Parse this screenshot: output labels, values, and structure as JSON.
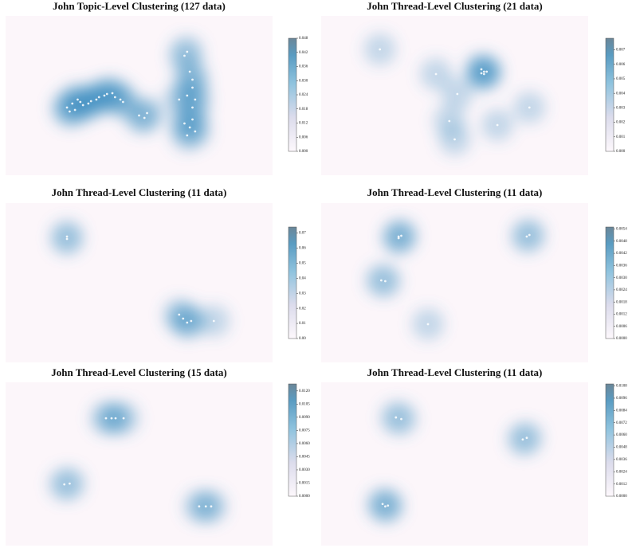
{
  "chart_data": [
    {
      "type": "kde",
      "title": "John Topic-Level Clustering (127 data)",
      "x": [
        23,
        25,
        26,
        28,
        29,
        31,
        32,
        34,
        35,
        37,
        38,
        40,
        41,
        43,
        44,
        24,
        27,
        50,
        52,
        53,
        67,
        68,
        69,
        70,
        70,
        68,
        65,
        71,
        70,
        67,
        69,
        71,
        68,
        70
      ],
      "y": [
        42.5,
        45,
        41,
        46,
        44,
        45,
        46.5,
        47.5,
        49,
        50,
        51,
        51.5,
        49,
        47.5,
        46,
        40,
        47.5,
        37.5,
        36,
        39,
        75,
        77.5,
        65,
        60,
        55,
        50,
        47.5,
        47.5,
        42.5,
        32.5,
        30,
        27.5,
        25,
        35
      ],
      "xlim": [
        0,
        100
      ],
      "ylim": [
        0,
        100
      ],
      "zlim": [
        0,
        0.048
      ],
      "zticks": [
        {
          "value": 0,
          "label": "0.000"
        },
        {
          "value": 0.006,
          "label": "0.006"
        },
        {
          "value": 0.012,
          "label": "0.012"
        },
        {
          "value": 0.018,
          "label": "0.018"
        },
        {
          "value": 0.024,
          "label": "0.024"
        },
        {
          "value": 0.03,
          "label": "0.030"
        },
        {
          "value": 0.036,
          "label": "0.036"
        },
        {
          "value": 0.042,
          "label": "0.042"
        },
        {
          "value": 0.048,
          "label": "0.048"
        }
      ]
    },
    {
      "type": "kde",
      "title": "John Thread-Level Clustering (21 data)",
      "x": [
        22,
        43,
        60,
        62,
        61,
        61,
        60,
        51,
        78,
        48,
        50,
        66
      ],
      "y": [
        79,
        63.5,
        66.5,
        65,
        63.5,
        65,
        64,
        51,
        42.5,
        34,
        22.5,
        31.5
      ],
      "xlim": [
        0,
        100
      ],
      "ylim": [
        0,
        100
      ],
      "zlim": [
        0,
        0.0078
      ],
      "zticks": [
        {
          "value": 0,
          "label": "0.000"
        },
        {
          "value": 0.001,
          "label": "0.001"
        },
        {
          "value": 0.002,
          "label": "0.002"
        },
        {
          "value": 0.003,
          "label": "0.003"
        },
        {
          "value": 0.004,
          "label": "0.004"
        },
        {
          "value": 0.005,
          "label": "0.005"
        },
        {
          "value": 0.006,
          "label": "0.006"
        },
        {
          "value": 0.007,
          "label": "0.007"
        }
      ]
    },
    {
      "type": "kde",
      "title": "John Thread-Level Clustering (11 data)",
      "x": [
        23,
        23,
        65,
        66.5,
        68,
        69.5,
        78
      ],
      "y": [
        79,
        77.5,
        30,
        27.5,
        25,
        26,
        26
      ],
      "xlim": [
        0,
        100
      ],
      "ylim": [
        0,
        100
      ],
      "zlim": [
        0,
        0.074
      ],
      "zticks": [
        {
          "value": 0,
          "label": "0.00"
        },
        {
          "value": 0.01,
          "label": "0.01"
        },
        {
          "value": 0.02,
          "label": "0.02"
        },
        {
          "value": 0.03,
          "label": "0.03"
        },
        {
          "value": 0.04,
          "label": "0.04"
        },
        {
          "value": 0.05,
          "label": "0.05"
        },
        {
          "value": 0.06,
          "label": "0.06"
        },
        {
          "value": 0.07,
          "label": "0.07"
        }
      ]
    },
    {
      "type": "kde",
      "title": "John Thread-Level Clustering (11 data)",
      "x": [
        29,
        30,
        29,
        22.5,
        24,
        40,
        77,
        78
      ],
      "y": [
        79,
        79.5,
        78,
        51.5,
        51,
        24,
        79,
        80
      ],
      "xlim": [
        0,
        100
      ],
      "ylim": [
        0,
        100
      ],
      "zlim": [
        0,
        0.0055
      ],
      "zticks": [
        {
          "value": 0,
          "label": "0.0000"
        },
        {
          "value": 0.0006,
          "label": "0.0006"
        },
        {
          "value": 0.0012,
          "label": "0.0012"
        },
        {
          "value": 0.0018,
          "label": "0.0018"
        },
        {
          "value": 0.0024,
          "label": "0.0024"
        },
        {
          "value": 0.003,
          "label": "0.0030"
        },
        {
          "value": 0.0036,
          "label": "0.0036"
        },
        {
          "value": 0.0042,
          "label": "0.0042"
        },
        {
          "value": 0.0048,
          "label": "0.0048"
        },
        {
          "value": 0.0054,
          "label": "0.0054"
        }
      ]
    },
    {
      "type": "kde",
      "title": "John Thread-Level Clustering (15 data)",
      "x": [
        37.6,
        39.7,
        41.2,
        44.2,
        22,
        24,
        72.5,
        75,
        77
      ],
      "y": [
        78,
        78,
        78,
        78,
        37.5,
        38,
        24,
        24,
        24
      ],
      "xlim": [
        0,
        100
      ],
      "ylim": [
        0,
        100
      ],
      "zlim": [
        0,
        0.0128
      ],
      "zticks": [
        {
          "value": 0,
          "label": "0.0000"
        },
        {
          "value": 0.0015,
          "label": "0.0015"
        },
        {
          "value": 0.003,
          "label": "0.0030"
        },
        {
          "value": 0.0045,
          "label": "0.0045"
        },
        {
          "value": 0.006,
          "label": "0.0060"
        },
        {
          "value": 0.0075,
          "label": "0.0075"
        },
        {
          "value": 0.009,
          "label": "0.0090"
        },
        {
          "value": 0.0105,
          "label": "0.0105"
        },
        {
          "value": 0.012,
          "label": "0.0120"
        }
      ]
    },
    {
      "type": "kde",
      "title": "John Thread-Level Clustering (11 data)",
      "x": [
        28,
        30,
        75.5,
        77,
        23,
        25,
        24
      ],
      "y": [
        78.5,
        77.5,
        65,
        66,
        25.5,
        24.5,
        24
      ],
      "xlim": [
        0,
        100
      ],
      "ylim": [
        0,
        100
      ],
      "zlim": [
        0,
        0.011
      ],
      "zticks": [
        {
          "value": 0,
          "label": "0.0000"
        },
        {
          "value": 0.0012,
          "label": "0.0012"
        },
        {
          "value": 0.0024,
          "label": "0.0024"
        },
        {
          "value": 0.0036,
          "label": "0.0036"
        },
        {
          "value": 0.0048,
          "label": "0.0048"
        },
        {
          "value": 0.006,
          "label": "0.0060"
        },
        {
          "value": 0.0072,
          "label": "0.0072"
        },
        {
          "value": 0.0084,
          "label": "0.0084"
        },
        {
          "value": 0.0096,
          "label": "0.0096"
        },
        {
          "value": 0.0108,
          "label": "0.0108"
        }
      ]
    }
  ]
}
